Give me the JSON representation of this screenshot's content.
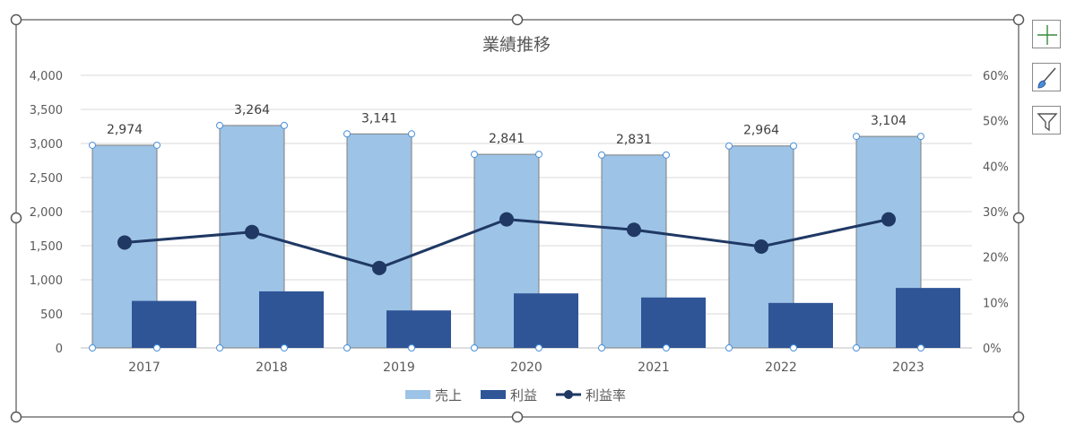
{
  "chart_data": {
    "type": "bar",
    "title": "業績推移",
    "categories": [
      "2017",
      "2018",
      "2019",
      "2020",
      "2021",
      "2022",
      "2023"
    ],
    "series": [
      {
        "name": "売上",
        "type": "bar",
        "axis": "left",
        "color": "#9dc3e6",
        "values": [
          2974,
          3264,
          3141,
          2841,
          2831,
          2964,
          3104
        ],
        "data_labels": [
          "2,974",
          "3,264",
          "3,141",
          "2,841",
          "2,831",
          "2,964",
          "3,104"
        ]
      },
      {
        "name": "利益",
        "type": "bar",
        "axis": "left",
        "color": "#2f5597",
        "values": [
          690,
          830,
          550,
          800,
          740,
          660,
          880
        ]
      },
      {
        "name": "利益率",
        "type": "line",
        "axis": "right",
        "color": "#1f3864",
        "values": [
          0.232,
          0.255,
          0.176,
          0.283,
          0.26,
          0.223,
          0.283
        ]
      }
    ],
    "y_left": {
      "ylim": [
        0,
        4000
      ],
      "ticks": [
        "0",
        "500",
        "1,000",
        "1,500",
        "2,000",
        "2,500",
        "3,000",
        "3,500",
        "4,000"
      ]
    },
    "y_right": {
      "ylim": [
        0,
        0.6
      ],
      "ticks": [
        "0%",
        "10%",
        "20%",
        "30%",
        "40%",
        "50%",
        "60%"
      ]
    },
    "grid": true,
    "legend_position": "bottom"
  },
  "side_buttons": [
    {
      "icon": "chart-elements-plus-icon"
    },
    {
      "icon": "chart-styles-brush-icon"
    },
    {
      "icon": "chart-filter-funnel-icon"
    }
  ]
}
